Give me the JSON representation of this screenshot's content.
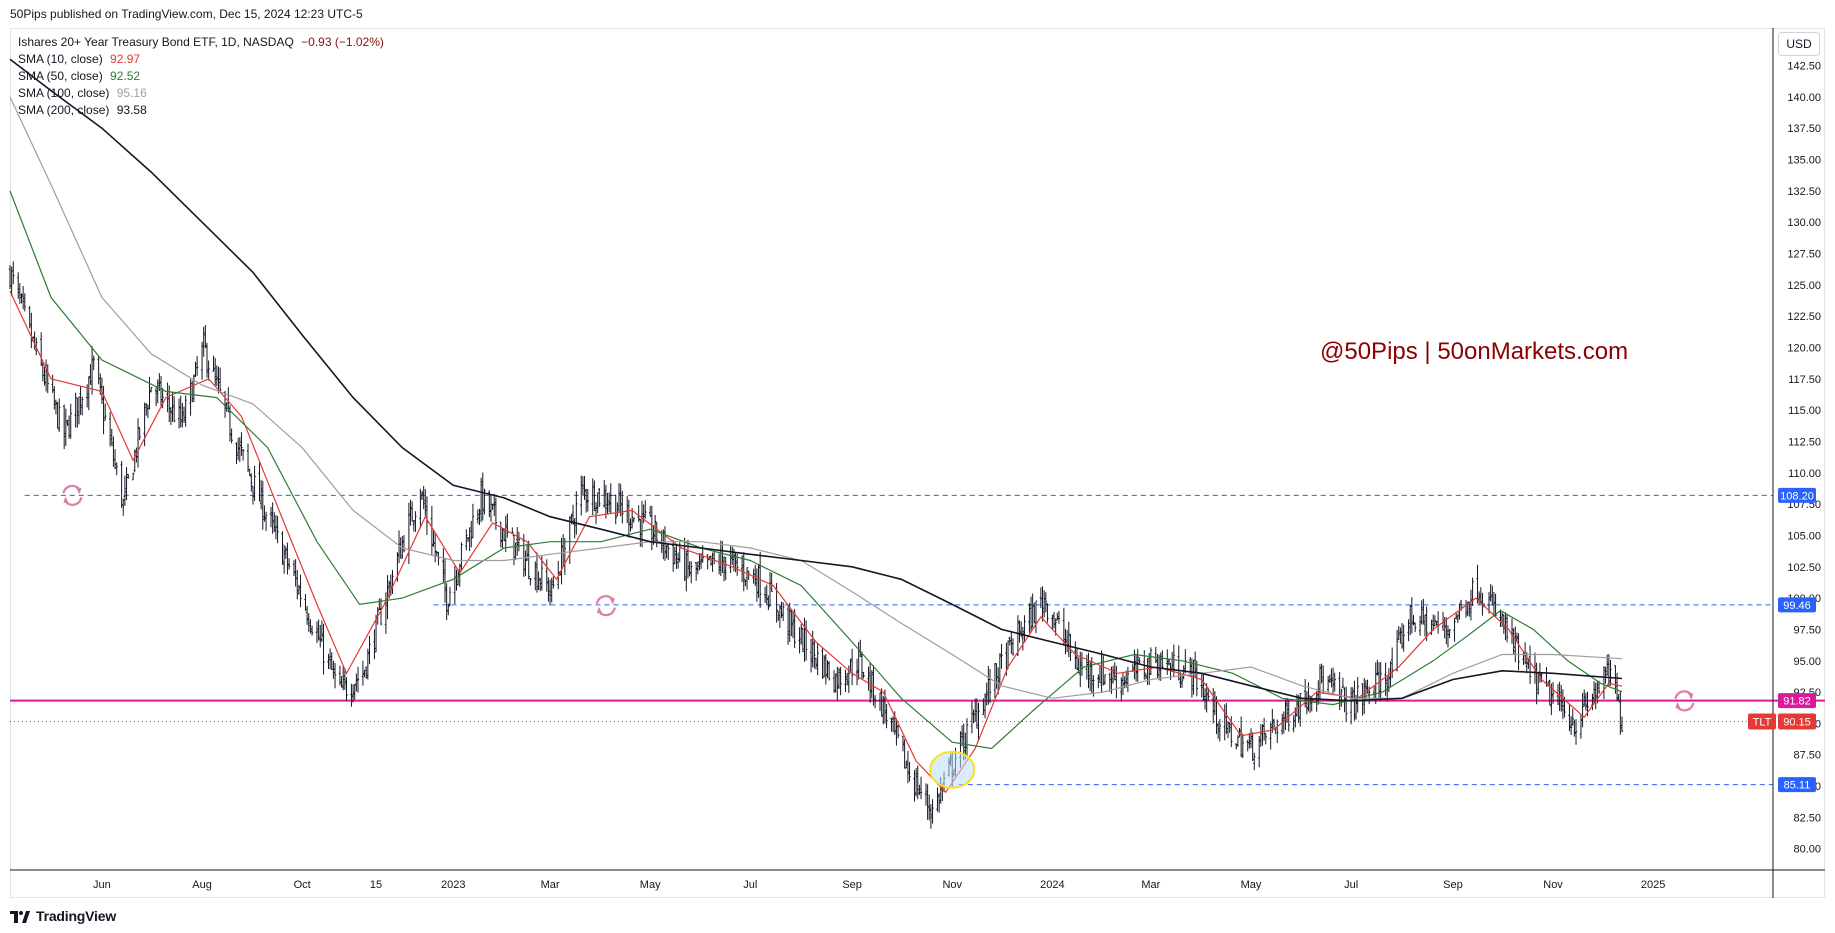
{
  "header": {
    "publish_text": "50Pips published on TradingView.com, Dec 15, 2024 12:23 UTC-5"
  },
  "legend": {
    "symbol_label": "Ishares 20+ Year Treasury Bond ETF, 1D, NASDAQ",
    "symbol_change": "−0.93 (−1.02%)",
    "symbol_change_color": "#880e0e",
    "sma": [
      {
        "label": "SMA (10, close)",
        "value": "92.97",
        "color": "#e53935"
      },
      {
        "label": "SMA (50, close)",
        "value": "92.52",
        "color": "#2e7d32"
      },
      {
        "label": "SMA (100, close)",
        "value": "95.16",
        "color": "#9e9e9e"
      },
      {
        "label": "SMA (200, close)",
        "value": "93.58",
        "color": "#131722"
      }
    ]
  },
  "toolbar": {
    "currency_label": "USD"
  },
  "watermark": {
    "text": "@50Pips | 50onMarkets.com",
    "color": "#8b0000"
  },
  "footer": {
    "brand_label": "TradingView"
  },
  "chart_data": {
    "type": "candlestick",
    "symbol": "TLT",
    "y_axis": {
      "range": [
        78.3,
        145.5
      ],
      "ticks": [
        "142.50",
        "140.00",
        "137.50",
        "135.00",
        "132.50",
        "130.00",
        "127.50",
        "125.00",
        "122.50",
        "120.00",
        "117.50",
        "115.00",
        "112.50",
        "110.00",
        "107.50",
        "105.00",
        "102.50",
        "100.00",
        "97.50",
        "95.00",
        "92.50",
        "90.00",
        "87.50",
        "85.00",
        "82.50",
        "80.00"
      ],
      "currency": "USD"
    },
    "x_axis": {
      "range": [
        "2022-04-06",
        "2025-03-15"
      ],
      "labels": [
        {
          "date": "2022-06-01",
          "text": "Jun"
        },
        {
          "date": "2022-08-01",
          "text": "Aug"
        },
        {
          "date": "2022-10-01",
          "text": "Oct"
        },
        {
          "date": "2022-11-15",
          "text": "15"
        },
        {
          "date": "2023-01-01",
          "text": "2023"
        },
        {
          "date": "2023-03-01",
          "text": "Mar"
        },
        {
          "date": "2023-05-01",
          "text": "May"
        },
        {
          "date": "2023-07-01",
          "text": "Jul"
        },
        {
          "date": "2023-09-01",
          "text": "Sep"
        },
        {
          "date": "2023-11-01",
          "text": "Nov"
        },
        {
          "date": "2024-01-01",
          "text": "2024"
        },
        {
          "date": "2024-03-01",
          "text": "Mar"
        },
        {
          "date": "2024-05-01",
          "text": "May"
        },
        {
          "date": "2024-07-01",
          "text": "Jul"
        },
        {
          "date": "2024-09-01",
          "text": "Sep"
        },
        {
          "date": "2024-11-01",
          "text": "Nov"
        },
        {
          "date": "2025-01-01",
          "text": "2025"
        }
      ]
    },
    "price_path": [
      [
        "2022-04-06",
        126.0
      ],
      [
        "2022-04-22",
        119.5
      ],
      [
        "2022-05-09",
        113.0
      ],
      [
        "2022-05-27",
        118.5
      ],
      [
        "2022-06-14",
        107.5
      ],
      [
        "2022-07-01",
        117.0
      ],
      [
        "2022-07-20",
        114.0
      ],
      [
        "2022-08-02",
        120.0
      ],
      [
        "2022-08-20",
        113.0
      ],
      [
        "2022-09-08",
        107.0
      ],
      [
        "2022-09-28",
        101.0
      ],
      [
        "2022-10-24",
        92.5
      ],
      [
        "2022-11-07",
        94.0
      ],
      [
        "2022-11-30",
        104.0
      ],
      [
        "2022-12-12",
        108.5
      ],
      [
        "2022-12-28",
        100.0
      ],
      [
        "2023-01-18",
        108.0
      ],
      [
        "2023-02-05",
        104.5
      ],
      [
        "2023-03-02",
        100.5
      ],
      [
        "2023-03-20",
        108.5
      ],
      [
        "2023-04-05",
        108.0
      ],
      [
        "2023-05-01",
        105.5
      ],
      [
        "2023-05-26",
        102.0
      ],
      [
        "2023-06-15",
        103.0
      ],
      [
        "2023-07-06",
        101.5
      ],
      [
        "2023-07-27",
        97.5
      ],
      [
        "2023-08-22",
        93.5
      ],
      [
        "2023-09-05",
        95.0
      ],
      [
        "2023-09-21",
        91.0
      ],
      [
        "2023-10-06",
        86.0
      ],
      [
        "2023-10-20",
        83.0
      ],
      [
        "2023-11-02",
        87.0
      ],
      [
        "2023-11-24",
        93.0
      ],
      [
        "2023-12-11",
        97.0
      ],
      [
        "2023-12-27",
        100.0
      ],
      [
        "2024-01-17",
        94.5
      ],
      [
        "2024-02-12",
        93.5
      ],
      [
        "2024-03-04",
        95.0
      ],
      [
        "2024-03-27",
        94.0
      ],
      [
        "2024-04-15",
        89.5
      ],
      [
        "2024-05-01",
        88.0
      ],
      [
        "2024-05-30",
        91.5
      ],
      [
        "2024-06-12",
        93.5
      ],
      [
        "2024-07-01",
        91.5
      ],
      [
        "2024-07-25",
        94.0
      ],
      [
        "2024-08-05",
        98.5
      ],
      [
        "2024-08-28",
        97.5
      ],
      [
        "2024-09-16",
        101.0
      ],
      [
        "2024-10-01",
        98.0
      ],
      [
        "2024-10-15",
        94.5
      ],
      [
        "2024-11-01",
        92.0
      ],
      [
        "2024-11-15",
        90.0
      ],
      [
        "2024-11-29",
        93.0
      ],
      [
        "2024-12-06",
        94.0
      ],
      [
        "2024-12-13",
        90.15
      ]
    ],
    "moving_averages": [
      {
        "name": "SMA (10, close)",
        "color": "#e53935",
        "points": [
          [
            "2022-04-06",
            124.5
          ],
          [
            "2022-05-01",
            117.5
          ],
          [
            "2022-06-01",
            116.5
          ],
          [
            "2022-06-20",
            111.0
          ],
          [
            "2022-07-10",
            116.0
          ],
          [
            "2022-08-05",
            117.5
          ],
          [
            "2022-08-25",
            114.5
          ],
          [
            "2022-09-20",
            106.0
          ],
          [
            "2022-10-10",
            99.5
          ],
          [
            "2022-10-28",
            94.0
          ],
          [
            "2022-11-20",
            99.5
          ],
          [
            "2022-12-15",
            106.5
          ],
          [
            "2023-01-05",
            102.0
          ],
          [
            "2023-01-25",
            106.0
          ],
          [
            "2023-02-15",
            104.5
          ],
          [
            "2023-03-05",
            101.5
          ],
          [
            "2023-03-25",
            106.5
          ],
          [
            "2023-04-20",
            107.0
          ],
          [
            "2023-05-20",
            104.0
          ],
          [
            "2023-06-20",
            102.5
          ],
          [
            "2023-07-15",
            101.0
          ],
          [
            "2023-08-10",
            96.5
          ],
          [
            "2023-09-01",
            94.0
          ],
          [
            "2023-09-20",
            92.5
          ],
          [
            "2023-10-10",
            87.0
          ],
          [
            "2023-10-28",
            84.5
          ],
          [
            "2023-11-15",
            88.0
          ],
          [
            "2023-12-05",
            94.5
          ],
          [
            "2023-12-25",
            98.5
          ],
          [
            "2024-01-15",
            95.5
          ],
          [
            "2024-02-10",
            94.0
          ],
          [
            "2024-03-05",
            94.5
          ],
          [
            "2024-04-01",
            93.5
          ],
          [
            "2024-04-25",
            89.0
          ],
          [
            "2024-05-15",
            89.5
          ],
          [
            "2024-06-10",
            92.5
          ],
          [
            "2024-07-05",
            92.0
          ],
          [
            "2024-07-30",
            94.5
          ],
          [
            "2024-08-20",
            97.5
          ],
          [
            "2024-09-15",
            100.0
          ],
          [
            "2024-10-05",
            97.5
          ],
          [
            "2024-10-25",
            93.5
          ],
          [
            "2024-11-20",
            90.5
          ],
          [
            "2024-12-05",
            93.2
          ],
          [
            "2024-12-13",
            92.97
          ]
        ]
      },
      {
        "name": "SMA (50, close)",
        "color": "#2e7d32",
        "points": [
          [
            "2022-04-06",
            132.5
          ],
          [
            "2022-05-01",
            124.0
          ],
          [
            "2022-06-01",
            119.0
          ],
          [
            "2022-07-10",
            116.5
          ],
          [
            "2022-08-10",
            116.0
          ],
          [
            "2022-09-10",
            112.0
          ],
          [
            "2022-10-10",
            104.5
          ],
          [
            "2022-11-05",
            99.5
          ],
          [
            "2022-12-01",
            100.0
          ],
          [
            "2023-01-01",
            101.5
          ],
          [
            "2023-02-01",
            104.0
          ],
          [
            "2023-03-01",
            104.5
          ],
          [
            "2023-04-01",
            104.5
          ],
          [
            "2023-05-01",
            105.5
          ],
          [
            "2023-06-01",
            104.0
          ],
          [
            "2023-07-01",
            103.0
          ],
          [
            "2023-08-01",
            101.0
          ],
          [
            "2023-09-01",
            96.5
          ],
          [
            "2023-10-01",
            92.0
          ],
          [
            "2023-11-01",
            88.5
          ],
          [
            "2023-11-25",
            88.0
          ],
          [
            "2023-12-20",
            91.0
          ],
          [
            "2024-01-20",
            94.5
          ],
          [
            "2024-02-20",
            95.5
          ],
          [
            "2024-03-20",
            95.0
          ],
          [
            "2024-04-20",
            94.0
          ],
          [
            "2024-05-20",
            92.0
          ],
          [
            "2024-06-20",
            91.5
          ],
          [
            "2024-07-20",
            92.5
          ],
          [
            "2024-08-20",
            95.0
          ],
          [
            "2024-09-10",
            97.0
          ],
          [
            "2024-09-30",
            99.0
          ],
          [
            "2024-10-20",
            97.5
          ],
          [
            "2024-11-10",
            95.0
          ],
          [
            "2024-11-30",
            93.2
          ],
          [
            "2024-12-13",
            92.52
          ]
        ]
      },
      {
        "name": "SMA (100, close)",
        "color": "#9e9e9e",
        "points": [
          [
            "2022-04-06",
            140.0
          ],
          [
            "2022-05-01",
            133.0
          ],
          [
            "2022-06-01",
            124.0
          ],
          [
            "2022-07-01",
            119.5
          ],
          [
            "2022-08-01",
            117.0
          ],
          [
            "2022-09-01",
            115.5
          ],
          [
            "2022-10-01",
            112.0
          ],
          [
            "2022-11-01",
            107.0
          ],
          [
            "2022-12-01",
            104.0
          ],
          [
            "2023-01-01",
            103.0
          ],
          [
            "2023-02-01",
            103.0
          ],
          [
            "2023-03-01",
            103.5
          ],
          [
            "2023-04-01",
            104.0
          ],
          [
            "2023-05-01",
            104.5
          ],
          [
            "2023-06-01",
            104.5
          ],
          [
            "2023-07-01",
            104.0
          ],
          [
            "2023-08-01",
            103.0
          ],
          [
            "2023-09-01",
            100.5
          ],
          [
            "2023-10-01",
            98.0
          ],
          [
            "2023-11-01",
            95.5
          ],
          [
            "2023-12-01",
            93.0
          ],
          [
            "2024-01-01",
            92.0
          ],
          [
            "2024-02-01",
            92.5
          ],
          [
            "2024-03-01",
            93.5
          ],
          [
            "2024-04-01",
            94.0
          ],
          [
            "2024-05-01",
            94.5
          ],
          [
            "2024-06-01",
            93.0
          ],
          [
            "2024-07-01",
            92.0
          ],
          [
            "2024-08-01",
            92.0
          ],
          [
            "2024-09-01",
            94.0
          ],
          [
            "2024-10-01",
            95.5
          ],
          [
            "2024-11-01",
            95.5
          ],
          [
            "2024-12-13",
            95.16
          ]
        ]
      },
      {
        "name": "SMA (200, close)",
        "color": "#131722",
        "points": [
          [
            "2022-04-06",
            143.0
          ],
          [
            "2022-05-01",
            140.5
          ],
          [
            "2022-06-01",
            137.5
          ],
          [
            "2022-07-01",
            134.0
          ],
          [
            "2022-08-01",
            130.0
          ],
          [
            "2022-09-01",
            126.0
          ],
          [
            "2022-10-01",
            121.0
          ],
          [
            "2022-11-01",
            116.0
          ],
          [
            "2022-12-01",
            112.0
          ],
          [
            "2023-01-01",
            109.0
          ],
          [
            "2023-02-01",
            108.0
          ],
          [
            "2023-03-01",
            106.5
          ],
          [
            "2023-04-01",
            105.5
          ],
          [
            "2023-05-01",
            104.5
          ],
          [
            "2023-06-01",
            104.0
          ],
          [
            "2023-07-01",
            103.5
          ],
          [
            "2023-08-01",
            103.0
          ],
          [
            "2023-09-01",
            102.5
          ],
          [
            "2023-10-01",
            101.5
          ],
          [
            "2023-11-01",
            99.5
          ],
          [
            "2023-12-01",
            97.5
          ],
          [
            "2024-01-01",
            96.5
          ],
          [
            "2024-02-01",
            95.5
          ],
          [
            "2024-03-01",
            94.5
          ],
          [
            "2024-04-01",
            94.0
          ],
          [
            "2024-05-01",
            93.0
          ],
          [
            "2024-06-01",
            92.0
          ],
          [
            "2024-07-01",
            91.8
          ],
          [
            "2024-08-01",
            92.0
          ],
          [
            "2024-09-01",
            93.5
          ],
          [
            "2024-10-01",
            94.2
          ],
          [
            "2024-11-01",
            94.0
          ],
          [
            "2024-12-13",
            93.58
          ]
        ]
      }
    ],
    "horizontal_levels": [
      {
        "price": 108.2,
        "label": "108.20",
        "style": "dashed",
        "color": "#2962ff",
        "start": "2022-04-15"
      },
      {
        "price": 99.46,
        "label": "99.46",
        "style": "dashed",
        "color": "#2962ff",
        "start": "2022-12-20"
      },
      {
        "price": 85.11,
        "label": "85.11",
        "style": "dashed",
        "color": "#2962ff",
        "start": "2023-11-05"
      },
      {
        "price": 91.82,
        "label": "91.82",
        "style": "solid",
        "color": "#d81b9a",
        "start": "2022-04-06"
      }
    ],
    "last_price": {
      "symbol": "TLT",
      "value": "90.15",
      "price": 90.15,
      "color": "#e53935"
    },
    "annotations": {
      "highlight_ellipse": {
        "date": "2023-11-01",
        "price": 86.3
      },
      "cycle_icons": [
        {
          "date": "2022-05-14",
          "price": 108.2
        },
        {
          "date": "2023-04-04",
          "price": 99.4
        },
        {
          "date": "2025-01-20",
          "price": 91.8
        }
      ]
    }
  }
}
